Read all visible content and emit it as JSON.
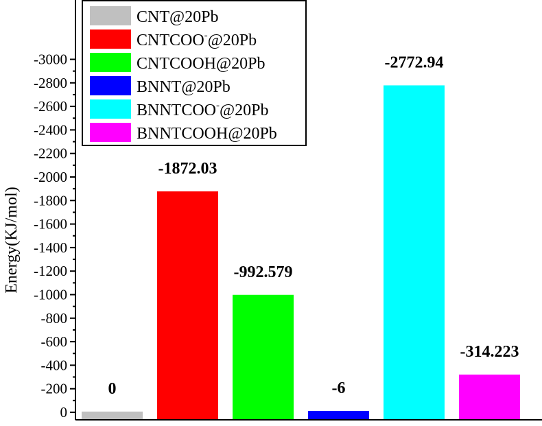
{
  "chart_data": {
    "type": "bar",
    "title": "",
    "xlabel": "",
    "ylabel": "Energy(KJ/mol)",
    "categories": [
      "CNT@20Pb",
      "CNTCOO-@20Pb",
      "CNTCOOH@20Pb",
      "BNNT@20Pb",
      "BNNTCOO-@20Pb",
      "BNNTCOOH@20Pb"
    ],
    "values": [
      0,
      -1872.03,
      -992.579,
      -6,
      -2772.94,
      -314.223
    ],
    "data_labels": [
      "0",
      "-1872.03",
      "-992.579",
      "-6",
      "-2772.94",
      "-314.223"
    ],
    "colors": [
      "#c0c0c0",
      "#ff0000",
      "#00ff00",
      "#0000ff",
      "#00ffff",
      "#ff00ff"
    ],
    "ylim": [
      0,
      -3100
    ],
    "yticks": [
      0,
      -200,
      -400,
      -600,
      -800,
      -1000,
      -1200,
      -1400,
      -1600,
      -1800,
      -2000,
      -2200,
      -2400,
      -2600,
      -2800,
      -3000
    ],
    "ytick_labels": [
      "0",
      "-200",
      "-400",
      "-600",
      "-800",
      "-1000",
      "-1200",
      "-1400",
      "-1600",
      "-1800",
      "-2000",
      "-2200",
      "-2400",
      "-2600",
      "-2800",
      "-3000"
    ],
    "y_inverted": true,
    "grid": false,
    "legend": {
      "placement": "top-left",
      "entries": [
        {
          "prefix": "CNT@20Pb",
          "sup": "",
          "suffix": ""
        },
        {
          "prefix": "CNTCOO",
          "sup": "-",
          "suffix": "@20Pb"
        },
        {
          "prefix": "CNTCOOH@20Pb",
          "sup": "",
          "suffix": ""
        },
        {
          "prefix": "BNNT@20Pb",
          "sup": "",
          "suffix": ""
        },
        {
          "prefix": "BNNTCOO",
          "sup": "-",
          "suffix": "@20Pb"
        },
        {
          "prefix": "BNNTCOOH@20Pb",
          "sup": "",
          "suffix": ""
        }
      ]
    }
  }
}
